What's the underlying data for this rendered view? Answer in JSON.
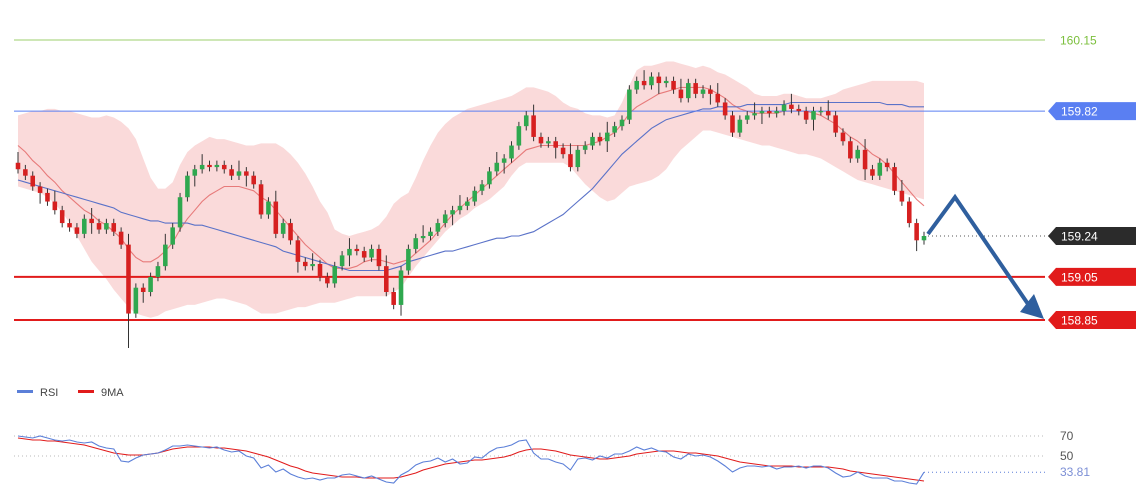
{
  "colors": {
    "resistance_line": "#9ecf6e",
    "blue_level": "#5a7ff2",
    "red_level": "#e11b1b",
    "bull_candle": "#2fa84f",
    "bear_candle": "#d62020",
    "bollinger_fill": "#f8cdcd",
    "ma_fast": "#e77a7a",
    "ma_slow": "#5a72c8",
    "arrow": "#2f5f9e",
    "current_tag": "#2b2b2b",
    "rsi": "#5b7fd8",
    "rsi_ma": "#e11b1b"
  },
  "chart_data": [
    {
      "type": "candlestick",
      "title": "",
      "price_levels": [
        {
          "label": "160.15",
          "value": 160.15,
          "style": "text-only",
          "color": "#7bbf3c"
        },
        {
          "label": "159.82",
          "value": 159.82,
          "style": "tag",
          "color": "#5a7ff2"
        },
        {
          "label": "159.24",
          "value": 159.24,
          "style": "tag",
          "color": "#2b2b2b"
        },
        {
          "label": "159.05",
          "value": 159.05,
          "style": "tag",
          "color": "#e11b1b"
        },
        {
          "label": "158.85",
          "value": 158.85,
          "style": "tag",
          "color": "#e11b1b"
        }
      ],
      "close": [
        159.55,
        159.52,
        159.47,
        159.44,
        159.4,
        159.36,
        159.3,
        159.28,
        159.25,
        159.32,
        159.3,
        159.27,
        159.3,
        159.26,
        159.2,
        158.88,
        159.0,
        158.98,
        159.05,
        159.1,
        159.2,
        159.28,
        159.42,
        159.52,
        159.55,
        159.57,
        159.56,
        159.57,
        159.55,
        159.52,
        159.54,
        159.52,
        159.48,
        159.34,
        159.4,
        159.25,
        159.3,
        159.22,
        159.12,
        159.1,
        159.11,
        159.05,
        159.02,
        159.1,
        159.15,
        159.18,
        159.17,
        159.14,
        159.18,
        159.1,
        158.98,
        158.92,
        159.08,
        159.18,
        159.23,
        159.24,
        159.26,
        159.3,
        159.34,
        159.36,
        159.38,
        159.4,
        159.45,
        159.48,
        159.54,
        159.58,
        159.6,
        159.66,
        159.75,
        159.8,
        159.7,
        159.67,
        159.68,
        159.65,
        159.62,
        159.56,
        159.64,
        159.66,
        159.7,
        159.68,
        159.72,
        159.75,
        159.78,
        159.92,
        159.96,
        159.94,
        159.98,
        159.95,
        159.96,
        159.92,
        159.88,
        159.95,
        159.9,
        159.92,
        159.9,
        159.86,
        159.8,
        159.72,
        159.78,
        159.8,
        159.81,
        159.82,
        159.81,
        159.82,
        159.85,
        159.83,
        159.82,
        159.78,
        159.82,
        159.82,
        159.8,
        159.72,
        159.68,
        159.6,
        159.64,
        159.55,
        159.52,
        159.58,
        159.56,
        159.45,
        159.4,
        159.3,
        159.22,
        159.24
      ],
      "bb_upper": [
        159.8,
        159.81,
        159.82,
        159.82,
        159.83,
        159.83,
        159.82,
        159.82,
        159.81,
        159.8,
        159.79,
        159.79,
        159.8,
        159.79,
        159.77,
        159.74,
        159.69,
        159.6,
        159.51,
        159.46,
        159.46,
        159.49,
        159.57,
        159.63,
        159.66,
        159.68,
        159.7,
        159.69,
        159.69,
        159.68,
        159.67,
        159.66,
        159.66,
        159.67,
        159.67,
        159.67,
        159.65,
        159.62,
        159.58,
        159.53,
        159.47,
        159.4,
        159.35,
        159.27,
        159.25,
        159.24,
        159.25,
        159.26,
        159.27,
        159.29,
        159.33,
        159.39,
        159.42,
        159.44,
        159.51,
        159.59,
        159.66,
        159.72,
        159.76,
        159.79,
        159.81,
        159.83,
        159.84,
        159.85,
        159.86,
        159.87,
        159.88,
        159.89,
        159.91,
        159.93,
        159.93,
        159.92,
        159.91,
        159.89,
        159.86,
        159.84,
        159.83,
        159.81,
        159.8,
        159.8,
        159.79,
        159.8,
        159.86,
        159.94,
        160.01,
        160.03,
        160.03,
        160.04,
        160.05,
        160.05,
        160.04,
        160.03,
        160.02,
        160.03,
        160.02,
        160.0,
        159.99,
        159.97,
        159.95,
        159.93,
        159.9,
        159.89,
        159.89,
        159.89,
        159.9,
        159.9,
        159.89,
        159.88,
        159.88,
        159.88,
        159.89,
        159.9,
        159.92,
        159.93,
        159.94,
        159.95,
        159.96,
        159.96,
        159.96,
        159.96,
        159.96,
        159.96,
        159.96,
        159.95
      ],
      "bb_lower": [
        159.47,
        159.46,
        159.45,
        159.44,
        159.42,
        159.39,
        159.35,
        159.3,
        159.24,
        159.18,
        159.12,
        159.08,
        159.04,
        158.99,
        158.95,
        158.91,
        158.88,
        158.87,
        158.86,
        158.87,
        158.89,
        158.9,
        158.91,
        158.92,
        158.92,
        158.93,
        158.94,
        158.95,
        158.95,
        158.94,
        158.93,
        158.92,
        158.9,
        158.88,
        158.88,
        158.88,
        158.89,
        158.9,
        158.91,
        158.91,
        158.92,
        158.93,
        158.93,
        158.93,
        158.94,
        158.95,
        158.96,
        158.96,
        158.96,
        158.96,
        158.96,
        158.98,
        159.0,
        159.05,
        159.1,
        159.14,
        159.18,
        159.22,
        159.26,
        159.29,
        159.32,
        159.34,
        159.37,
        159.39,
        159.41,
        159.44,
        159.47,
        159.52,
        159.56,
        159.58,
        159.58,
        159.58,
        159.58,
        159.58,
        159.58,
        159.56,
        159.52,
        159.48,
        159.45,
        159.42,
        159.4,
        159.41,
        159.44,
        159.47,
        159.48,
        159.49,
        159.5,
        159.52,
        159.55,
        159.6,
        159.64,
        159.67,
        159.7,
        159.73,
        159.73,
        159.72,
        159.71,
        159.7,
        159.69,
        159.68,
        159.67,
        159.66,
        159.66,
        159.65,
        159.64,
        159.63,
        159.62,
        159.62,
        159.61,
        159.6,
        159.58,
        159.56,
        159.54,
        159.52,
        159.5,
        159.49,
        159.48,
        159.47,
        159.46,
        159.45,
        159.44,
        159.43,
        159.42,
        159.41
      ],
      "ma_fast": [
        159.66,
        159.63,
        159.59,
        159.56,
        159.52,
        159.49,
        159.45,
        159.42,
        159.39,
        159.36,
        159.34,
        159.31,
        159.29,
        159.26,
        159.23,
        159.18,
        159.14,
        159.12,
        159.12,
        159.14,
        159.17,
        159.21,
        159.27,
        159.32,
        159.36,
        159.4,
        159.43,
        159.45,
        159.47,
        159.47,
        159.47,
        159.46,
        159.45,
        159.42,
        159.4,
        159.36,
        159.32,
        159.28,
        159.24,
        159.2,
        159.17,
        159.14,
        159.11,
        159.09,
        159.09,
        159.09,
        159.1,
        159.12,
        159.13,
        159.13,
        159.12,
        159.11,
        159.12,
        159.13,
        159.16,
        159.19,
        159.22,
        159.26,
        159.3,
        159.34,
        159.37,
        159.4,
        159.43,
        159.46,
        159.49,
        159.52,
        159.55,
        159.58,
        159.61,
        159.64,
        159.65,
        159.66,
        159.66,
        159.66,
        159.66,
        159.66,
        159.66,
        159.66,
        159.67,
        159.68,
        159.7,
        159.72,
        159.76,
        159.81,
        159.84,
        159.86,
        159.88,
        159.9,
        159.91,
        159.92,
        159.93,
        159.93,
        159.93,
        159.93,
        159.92,
        159.9,
        159.88,
        159.85,
        159.83,
        159.82,
        159.81,
        159.81,
        159.81,
        159.81,
        159.82,
        159.82,
        159.82,
        159.82,
        159.81,
        159.8,
        159.78,
        159.76,
        159.73,
        159.7,
        159.68,
        159.65,
        159.62,
        159.6,
        159.57,
        159.53,
        159.49,
        159.45,
        159.41,
        159.38
      ],
      "ma_slow": [
        159.5,
        159.49,
        159.48,
        159.47,
        159.46,
        159.45,
        159.44,
        159.43,
        159.42,
        159.41,
        159.4,
        159.39,
        159.38,
        159.37,
        159.35,
        159.34,
        159.33,
        159.32,
        159.31,
        159.31,
        159.3,
        159.3,
        159.3,
        159.3,
        159.29,
        159.29,
        159.28,
        159.27,
        159.26,
        159.25,
        159.24,
        159.23,
        159.22,
        159.21,
        159.2,
        159.19,
        159.17,
        159.16,
        159.15,
        159.14,
        159.13,
        159.12,
        159.11,
        159.1,
        159.09,
        159.08,
        159.08,
        159.08,
        159.08,
        159.08,
        159.08,
        159.09,
        159.1,
        159.12,
        159.13,
        159.14,
        159.15,
        159.16,
        159.17,
        159.17,
        159.18,
        159.19,
        159.2,
        159.21,
        159.22,
        159.23,
        159.23,
        159.24,
        159.24,
        159.25,
        159.26,
        159.28,
        159.3,
        159.32,
        159.34,
        159.37,
        159.4,
        159.43,
        159.46,
        159.5,
        159.54,
        159.58,
        159.62,
        159.65,
        159.68,
        159.71,
        159.74,
        159.76,
        159.78,
        159.79,
        159.8,
        159.81,
        159.82,
        159.83,
        159.83,
        159.84,
        159.84,
        159.84,
        159.84,
        159.85,
        159.85,
        159.85,
        159.85,
        159.85,
        159.85,
        159.86,
        159.86,
        159.86,
        159.86,
        159.86,
        159.86,
        159.86,
        159.86,
        159.86,
        159.86,
        159.86,
        159.86,
        159.86,
        159.85,
        159.85,
        159.85,
        159.84,
        159.84,
        159.84
      ],
      "forecast": {
        "peak": 159.42,
        "target": 158.85
      },
      "ylim": [
        158.67,
        160.22
      ]
    },
    {
      "type": "line",
      "legend": [
        {
          "name": "RSI",
          "color": "#5b7fd8"
        },
        {
          "name": "9MA",
          "color": "#e11b1b"
        }
      ],
      "levels": [
        {
          "label": "70",
          "value": 70
        },
        {
          "label": "50",
          "value": 50
        }
      ],
      "current": {
        "label": "33.81",
        "value": 33.81
      },
      "rsi": [
        70,
        69,
        68,
        70,
        68,
        66,
        65,
        66,
        64,
        63,
        64,
        60,
        58,
        57,
        45,
        44,
        48,
        51,
        52,
        53,
        56,
        60,
        60,
        61,
        60,
        59,
        58,
        59,
        56,
        54,
        55,
        50,
        48,
        38,
        41,
        34,
        37,
        32,
        29,
        27,
        28,
        26,
        28,
        28,
        31,
        32,
        30,
        28,
        30,
        27,
        24,
        23,
        31,
        35,
        41,
        44,
        45,
        48,
        44,
        47,
        42,
        43,
        49,
        48,
        54,
        58,
        59,
        61,
        65,
        66,
        53,
        47,
        47,
        44,
        42,
        36,
        47,
        48,
        46,
        50,
        48,
        52,
        52,
        55,
        59,
        56,
        58,
        55,
        54,
        49,
        47,
        52,
        50,
        51,
        49,
        45,
        40,
        34,
        38,
        40,
        40,
        39,
        40,
        37,
        39,
        39,
        40,
        38,
        40,
        40,
        38,
        33,
        29,
        30,
        34,
        30,
        28,
        28,
        28,
        25,
        25,
        23,
        22,
        33.81
      ],
      "rsi_ma": [
        68,
        67,
        66,
        66,
        65,
        65,
        64,
        63,
        62,
        61,
        59,
        57,
        55,
        53,
        52,
        51,
        51,
        51,
        52,
        53,
        55,
        57,
        58,
        59,
        59,
        59,
        59,
        58,
        58,
        57,
        56,
        55,
        53,
        51,
        49,
        46,
        43,
        40,
        38,
        35,
        33,
        32,
        31,
        30,
        29,
        29,
        29,
        28,
        28,
        28,
        28,
        28,
        29,
        31,
        33,
        36,
        38,
        40,
        42,
        43,
        44,
        45,
        46,
        46,
        47,
        48,
        49,
        51,
        54,
        56,
        57,
        57,
        56,
        55,
        53,
        51,
        50,
        49,
        48,
        47,
        47,
        48,
        49,
        50,
        52,
        53,
        54,
        55,
        55,
        55,
        54,
        53,
        53,
        52,
        51,
        50,
        48,
        46,
        44,
        43,
        42,
        41,
        40,
        40,
        40,
        40,
        39,
        39,
        39,
        39,
        39,
        38,
        37,
        35,
        34,
        33,
        32,
        31,
        30,
        29,
        28,
        27,
        26,
        25
      ],
      "ylim": [
        14,
        85
      ]
    }
  ]
}
